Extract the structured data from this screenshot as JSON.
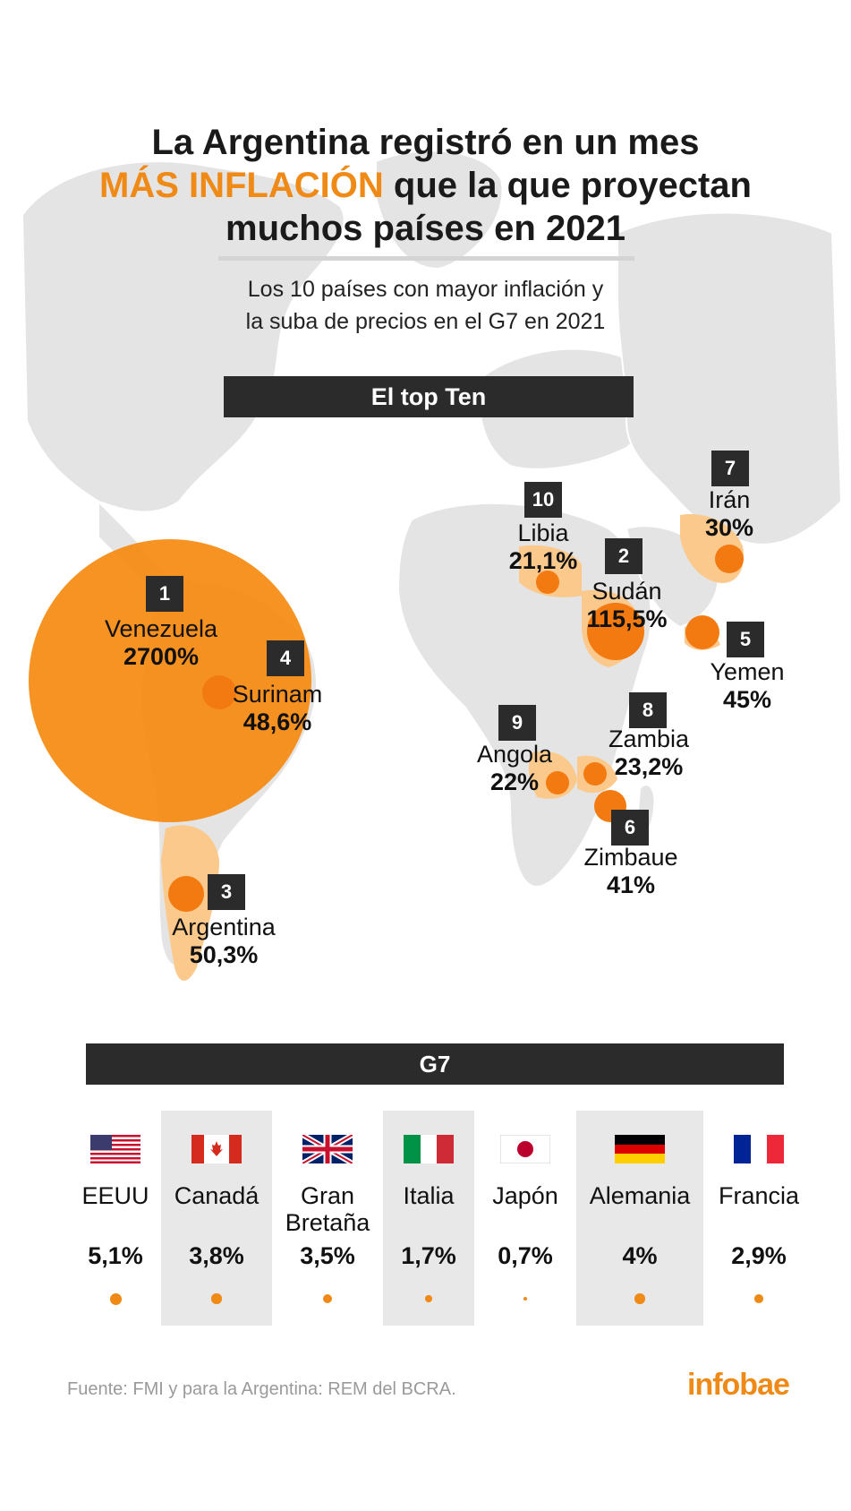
{
  "title": {
    "line1": "La Argentina registró en un mes",
    "line2_highlight": "MÁS INFLACIÓN",
    "line2_rest": " que la que proyectan",
    "line3": "muchos países en 2021"
  },
  "subtitle": {
    "line1": "Los 10 países con mayor inflación y",
    "line2": "la suba de precios en el G7 en 2021"
  },
  "top_ten_header": "El top Ten",
  "top_ten": [
    {
      "rank": "1",
      "country": "Venezuela",
      "value": "2700%",
      "inflation": 2700
    },
    {
      "rank": "2",
      "country": "Sudán",
      "value": "115,5%",
      "inflation": 115.5
    },
    {
      "rank": "3",
      "country": "Argentina",
      "value": "50,3%",
      "inflation": 50.3
    },
    {
      "rank": "4",
      "country": "Surinam",
      "value": "48,6%",
      "inflation": 48.6
    },
    {
      "rank": "5",
      "country": "Yemen",
      "value": "45%",
      "inflation": 45
    },
    {
      "rank": "6",
      "country": "Zimbaue",
      "value": "41%",
      "inflation": 41
    },
    {
      "rank": "7",
      "country": "Irán",
      "value": "30%",
      "inflation": 30
    },
    {
      "rank": "8",
      "country": "Zambia",
      "value": "23,2%",
      "inflation": 23.2
    },
    {
      "rank": "9",
      "country": "Angola",
      "value": "22%",
      "inflation": 22
    },
    {
      "rank": "10",
      "country": "Libia",
      "value": "21,1%",
      "inflation": 21.1
    }
  ],
  "g7_header": "G7",
  "g7": [
    {
      "country": "EEUU",
      "value": "5,1%",
      "inflation": 5.1,
      "flag": "us-flag"
    },
    {
      "country": "Canadá",
      "value": "3,8%",
      "inflation": 3.8,
      "flag": "canada-flag"
    },
    {
      "country": "Gran Bretaña",
      "value": "3,5%",
      "inflation": 3.5,
      "flag": "uk-flag"
    },
    {
      "country": "Italia",
      "value": "1,7%",
      "inflation": 1.7,
      "flag": "italy-flag"
    },
    {
      "country": "Japón",
      "value": "0,7%",
      "inflation": 0.7,
      "flag": "japan-flag"
    },
    {
      "country": "Alemania",
      "value": "4%",
      "inflation": 4,
      "flag": "germany-flag"
    },
    {
      "country": "Francia",
      "value": "2,9%",
      "inflation": 2.9,
      "flag": "france-flag"
    }
  ],
  "source": "Fuente: FMI y para la Argentina: REM del BCRA.",
  "logo": "infobae",
  "colors": {
    "accent": "#f08a17",
    "dark": "#2b2b2b",
    "map_land": "#e3e3e3",
    "highlight_country": "#fbc98c"
  }
}
